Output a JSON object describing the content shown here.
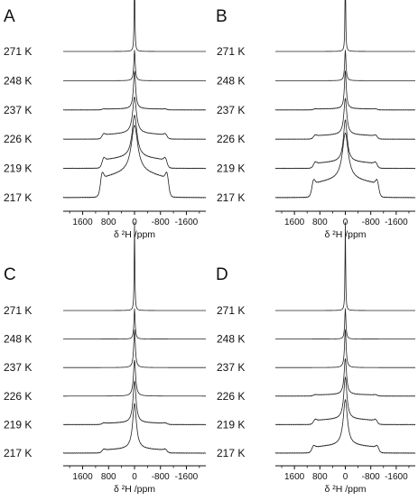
{
  "figure": {
    "panels": [
      {
        "label": "A",
        "temperatures": [
          "271 K",
          "248 K",
          "237 K",
          "226 K",
          "219 K",
          "217 K"
        ]
      },
      {
        "label": "B",
        "temperatures": [
          "271 K",
          "248 K",
          "237 K",
          "226 K",
          "219 K",
          "217 K"
        ]
      },
      {
        "label": "C",
        "temperatures": [
          "271 K",
          "248 K",
          "237 K",
          "226 K",
          "219 K",
          "217 K"
        ]
      },
      {
        "label": "D",
        "temperatures": [
          "271 K",
          "248 K",
          "237 K",
          "226 K",
          "219 K",
          "217 K"
        ]
      }
    ],
    "x_tick_labels": [
      "1600",
      "800",
      "0",
      "-800",
      "-1600"
    ],
    "x_axis_label": "δ ²H /ppm"
  },
  "chart_data": [
    {
      "type": "line",
      "panel": "A",
      "xlabel": "δ ²H /ppm",
      "xlim": [
        2200,
        -2200
      ],
      "x_ticks": [
        1600,
        800,
        0,
        -800,
        -1600
      ],
      "series": [
        {
          "name": "271 K",
          "peak_height": 1.0,
          "central_width_ppm": 12,
          "pake_horn_ppm": 0,
          "broad_component": 0.0
        },
        {
          "name": "248 K",
          "peak_height": 0.4,
          "central_width_ppm": 25,
          "pake_horn_ppm": 0,
          "broad_component": 0.0
        },
        {
          "name": "237 K",
          "peak_height": 0.55,
          "central_width_ppm": 40,
          "pake_horn_ppm": 0,
          "broad_component": 0.02
        },
        {
          "name": "226 K",
          "peak_height": 0.45,
          "central_width_ppm": 70,
          "pake_horn_ppm": 1000,
          "broad_component": 0.09
        },
        {
          "name": "219 K",
          "peak_height": 0.45,
          "central_width_ppm": 90,
          "pake_horn_ppm": 1000,
          "broad_component": 0.15
        },
        {
          "name": "217 K",
          "peak_height": 0.45,
          "central_width_ppm": 120,
          "pake_horn_ppm": 1050,
          "broad_component": 0.32
        }
      ]
    },
    {
      "type": "line",
      "panel": "B",
      "xlabel": "δ ²H /ppm",
      "xlim": [
        2200,
        -2200
      ],
      "x_ticks": [
        1600,
        800,
        0,
        -800,
        -1600
      ],
      "series": [
        {
          "name": "271 K",
          "peak_height": 1.0,
          "central_width_ppm": 12,
          "pake_horn_ppm": 0,
          "broad_component": 0.0
        },
        {
          "name": "248 K",
          "peak_height": 0.45,
          "central_width_ppm": 25,
          "pake_horn_ppm": 0,
          "broad_component": 0.0
        },
        {
          "name": "237 K",
          "peak_height": 0.5,
          "central_width_ppm": 35,
          "pake_horn_ppm": 0,
          "broad_component": 0.02
        },
        {
          "name": "226 K",
          "peak_height": 0.45,
          "central_width_ppm": 55,
          "pake_horn_ppm": 1000,
          "broad_component": 0.07
        },
        {
          "name": "219 K",
          "peak_height": 0.6,
          "central_width_ppm": 70,
          "pake_horn_ppm": 1000,
          "broad_component": 0.12
        },
        {
          "name": "217 K",
          "peak_height": 0.55,
          "central_width_ppm": 110,
          "pake_horn_ppm": 1050,
          "broad_component": 0.28
        }
      ]
    },
    {
      "type": "line",
      "panel": "C",
      "xlabel": "δ ²H /ppm",
      "xlim": [
        2200,
        -2200
      ],
      "x_ticks": [
        1600,
        800,
        0,
        -800,
        -1600
      ],
      "series": [
        {
          "name": "271 K",
          "peak_height": 1.0,
          "central_width_ppm": 12,
          "pake_horn_ppm": 0,
          "broad_component": 0.0
        },
        {
          "name": "248 K",
          "peak_height": 0.45,
          "central_width_ppm": 22,
          "pake_horn_ppm": 0,
          "broad_component": 0.0
        },
        {
          "name": "237 K",
          "peak_height": 0.45,
          "central_width_ppm": 30,
          "pake_horn_ppm": 0,
          "broad_component": 0.0
        },
        {
          "name": "226 K",
          "peak_height": 0.5,
          "central_width_ppm": 40,
          "pake_horn_ppm": 0,
          "broad_component": 0.0
        },
        {
          "name": "219 K",
          "peak_height": 0.55,
          "central_width_ppm": 55,
          "pake_horn_ppm": 1000,
          "broad_component": 0.03
        },
        {
          "name": "217 K",
          "peak_height": 0.7,
          "central_width_ppm": 70,
          "pake_horn_ppm": 1000,
          "broad_component": 0.08
        }
      ]
    },
    {
      "type": "line",
      "panel": "D",
      "xlabel": "δ ²H /ppm",
      "xlim": [
        2200,
        -2200
      ],
      "x_ticks": [
        1600,
        800,
        0,
        -800,
        -1600
      ],
      "series": [
        {
          "name": "271 K",
          "peak_height": 1.0,
          "central_width_ppm": 12,
          "pake_horn_ppm": 0,
          "broad_component": 0.0
        },
        {
          "name": "248 K",
          "peak_height": 0.45,
          "central_width_ppm": 22,
          "pake_horn_ppm": 0,
          "broad_component": 0.0
        },
        {
          "name": "237 K",
          "peak_height": 0.5,
          "central_width_ppm": 30,
          "pake_horn_ppm": 0,
          "broad_component": 0.0
        },
        {
          "name": "226 K",
          "peak_height": 0.55,
          "central_width_ppm": 45,
          "pake_horn_ppm": 1000,
          "broad_component": 0.03
        },
        {
          "name": "219 K",
          "peak_height": 0.6,
          "central_width_ppm": 60,
          "pake_horn_ppm": 1000,
          "broad_component": 0.1
        },
        {
          "name": "217 K",
          "peak_height": 0.65,
          "central_width_ppm": 80,
          "pake_horn_ppm": 1050,
          "broad_component": 0.14
        }
      ]
    }
  ]
}
